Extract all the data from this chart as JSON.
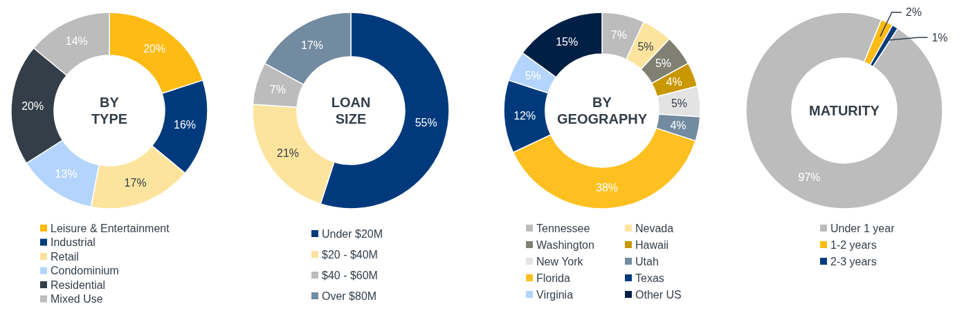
{
  "chart_data": [
    {
      "type": "donut",
      "title": "BY TYPE",
      "categories": [
        "Leisure & Entertainment",
        "Industrial",
        "Retail",
        "Condominium",
        "Residential",
        "Mixed Use"
      ],
      "values": [
        20,
        16,
        17,
        13,
        20,
        14
      ],
      "value_labels": [
        "20%",
        "16%",
        "17%",
        "13%",
        "20%",
        "14%"
      ],
      "colors": [
        "#fdbb13",
        "#003a7d",
        "#fde49e",
        "#b3d4fc",
        "#333e48",
        "#bcbcbc"
      ],
      "legend": "bottom"
    },
    {
      "type": "donut",
      "title": "LOAN SIZE",
      "categories": [
        "Under $20M",
        "$20 - $40M",
        "$40 - $60M",
        "Over $80M"
      ],
      "values": [
        55,
        21,
        7,
        17
      ],
      "value_labels": [
        "55%",
        "21%",
        "7%",
        "17%"
      ],
      "colors": [
        "#003a7d",
        "#fde49e",
        "#bcbcbc",
        "#738ba0"
      ],
      "legend": "bottom"
    },
    {
      "type": "donut",
      "title": "BY GEOGRAPHY",
      "categories": [
        "Tennessee",
        "Nevada",
        "Washington",
        "Hawaii",
        "New York",
        "Utah",
        "Florida",
        "Texas",
        "Virginia",
        "Other US"
      ],
      "values": [
        7,
        5,
        5,
        4,
        5,
        4,
        38,
        12,
        5,
        15
      ],
      "value_labels": [
        "7%",
        "5%",
        "5%",
        "4%",
        "5%",
        "4%",
        "38%",
        "12%",
        "5%",
        "15%"
      ],
      "colors": [
        "#bcbcbc",
        "#fde49e",
        "#7f7f72",
        "#c99700",
        "#e3e3e3",
        "#738ba0",
        "#fdc020",
        "#003a7d",
        "#b3d4fc",
        "#001f45"
      ],
      "legend": "bottom"
    },
    {
      "type": "donut",
      "title": "MATURITY",
      "categories": [
        "Under 1 year",
        "1-2 years",
        "2-3 years"
      ],
      "values": [
        97,
        2,
        1
      ],
      "value_labels": [
        "97%",
        "2%",
        "1%"
      ],
      "colors": [
        "#bcbcbc",
        "#fdbb13",
        "#003a7d"
      ],
      "legend": "bottom"
    }
  ]
}
